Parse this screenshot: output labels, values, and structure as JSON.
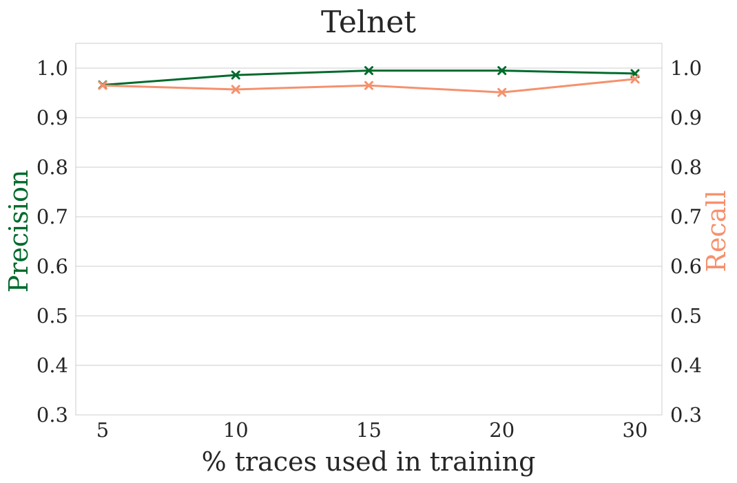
{
  "chart_data": {
    "type": "line",
    "title": "Telnet",
    "xlabel": "% traces used in training",
    "ylabel_left": "Precision",
    "ylabel_right": "Recall",
    "categories": [
      "5",
      "10",
      "15",
      "20",
      "30"
    ],
    "ylim": [
      0.3,
      1.05
    ],
    "yticks": [
      "0.3",
      "0.4",
      "0.5",
      "0.6",
      "0.7",
      "0.8",
      "0.9",
      "1.0"
    ],
    "grid": "horizontal",
    "series": [
      {
        "axis": "left",
        "color": "#006a2c",
        "marker": "x",
        "values": [
          0.966,
          0.986,
          0.995,
          0.995,
          0.989
        ]
      },
      {
        "axis": "right",
        "color": "#f5916d",
        "marker": "x",
        "values": [
          0.965,
          0.957,
          0.965,
          0.951,
          0.978
        ]
      }
    ],
    "colors": {
      "precision_label": "#006a2c",
      "recall_label": "#f5916d",
      "text": "#262626",
      "grid": "#cccccc",
      "frame": "#cccccc"
    }
  }
}
